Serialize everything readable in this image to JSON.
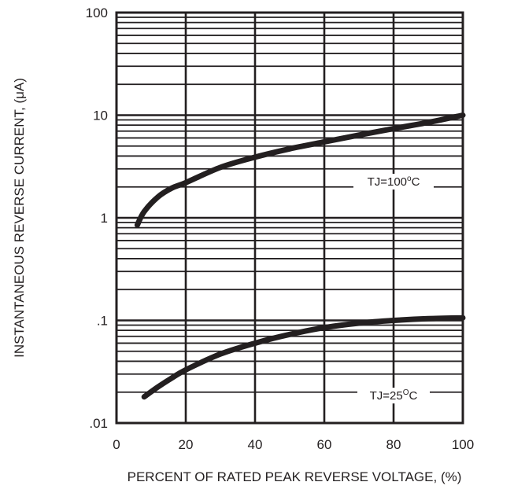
{
  "chart_data": {
    "type": "line",
    "xlabel": "PERCENT OF RATED PEAK REVERSE VOLTAGE, (%)",
    "ylabel": "INSTANTANEOUS REVERSE CURRENT, (μA)",
    "x_ticks": [
      "0",
      "20",
      "40",
      "60",
      "80",
      "100"
    ],
    "y_ticks": [
      ".01",
      ".1",
      "1",
      "10",
      "100"
    ],
    "xlim": [
      0,
      100
    ],
    "ylim": [
      0.01,
      100
    ],
    "y_scale": "log",
    "grid": true,
    "series": [
      {
        "name": "TJ=100°C",
        "label_text": "TJ=100",
        "label_sup": "o",
        "label_suffix": "C",
        "x": [
          6,
          8,
          12,
          16,
          20,
          30,
          40,
          50,
          60,
          70,
          80,
          90,
          100
        ],
        "y": [
          0.85,
          1.15,
          1.6,
          1.95,
          2.2,
          3.1,
          3.9,
          4.7,
          5.5,
          6.4,
          7.4,
          8.5,
          10.0
        ]
      },
      {
        "name": "TJ=25°C",
        "label_text": "TJ=25",
        "label_sup": "O",
        "label_suffix": "C",
        "x": [
          8,
          12,
          16,
          20,
          30,
          40,
          50,
          60,
          70,
          80,
          90,
          100
        ],
        "y": [
          0.018,
          0.0225,
          0.0275,
          0.033,
          0.047,
          0.06,
          0.073,
          0.085,
          0.094,
          0.1,
          0.104,
          0.106
        ]
      }
    ]
  }
}
